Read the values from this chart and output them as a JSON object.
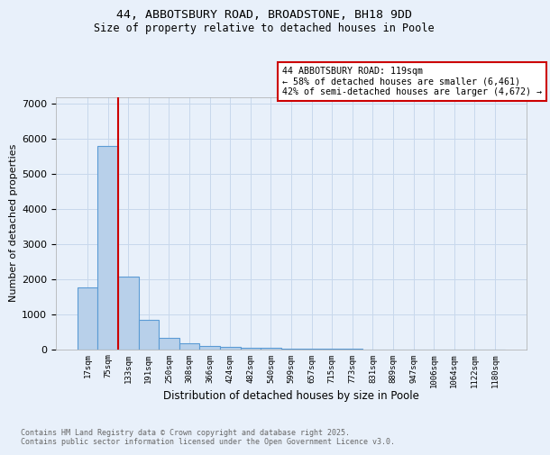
{
  "title1": "44, ABBOTSBURY ROAD, BROADSTONE, BH18 9DD",
  "title2": "Size of property relative to detached houses in Poole",
  "xlabel": "Distribution of detached houses by size in Poole",
  "ylabel": "Number of detached properties",
  "bar_labels": [
    "17sqm",
    "75sqm",
    "133sqm",
    "191sqm",
    "250sqm",
    "308sqm",
    "366sqm",
    "424sqm",
    "482sqm",
    "540sqm",
    "599sqm",
    "657sqm",
    "715sqm",
    "773sqm",
    "831sqm",
    "889sqm",
    "947sqm",
    "1006sqm",
    "1064sqm",
    "1122sqm",
    "1180sqm"
  ],
  "bar_values": [
    1750,
    5800,
    2080,
    830,
    330,
    175,
    100,
    70,
    50,
    30,
    10,
    5,
    3,
    1,
    0,
    0,
    0,
    0,
    0,
    0,
    0
  ],
  "bar_color": "#b8d0ea",
  "bar_edge_color": "#5b9bd5",
  "red_line_color": "#cc0000",
  "red_line_x": 1.5,
  "annotation_text": "44 ABBOTSBURY ROAD: 119sqm\n← 58% of detached houses are smaller (6,461)\n42% of semi-detached houses are larger (4,672) →",
  "annotation_box_facecolor": "#ffffff",
  "annotation_box_edgecolor": "#cc0000",
  "ylim": [
    0,
    7200
  ],
  "yticks": [
    0,
    1000,
    2000,
    3000,
    4000,
    5000,
    6000,
    7000
  ],
  "grid_color": "#c8d8ec",
  "bg_color": "#e8f0fa",
  "footer1": "Contains HM Land Registry data © Crown copyright and database right 2025.",
  "footer2": "Contains public sector information licensed under the Open Government Licence v3.0."
}
